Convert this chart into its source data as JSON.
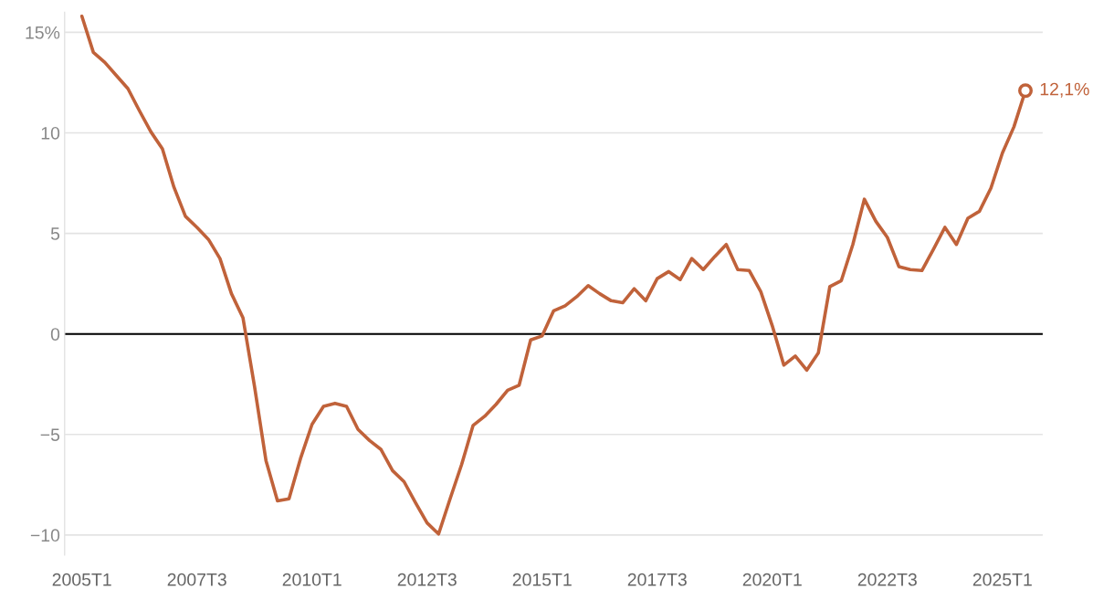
{
  "chart_data": {
    "type": "line",
    "categories": [
      "2005T1",
      null,
      null,
      null,
      null,
      null,
      null,
      null,
      null,
      null,
      "2007T3",
      null,
      null,
      null,
      null,
      null,
      null,
      null,
      null,
      null,
      "2010T1",
      null,
      null,
      null,
      null,
      null,
      null,
      null,
      null,
      null,
      "2012T3",
      null,
      null,
      null,
      null,
      null,
      null,
      null,
      null,
      null,
      "2015T1",
      null,
      null,
      null,
      null,
      null,
      null,
      null,
      null,
      null,
      "2017T3",
      null,
      null,
      null,
      null,
      null,
      null,
      null,
      null,
      null,
      "2020T1",
      null,
      null,
      null,
      null,
      null,
      null,
      null,
      null,
      null,
      "2022T3",
      null,
      null,
      null,
      null,
      null,
      null,
      null,
      null,
      null,
      "2025T1",
      null,
      null
    ],
    "series": [
      {
        "color": "#c0623a",
        "values": [
          15.8,
          14.0,
          13.5,
          12.85,
          12.2,
          11.1,
          10.05,
          9.2,
          7.3,
          5.85,
          5.3,
          4.7,
          3.75,
          2.0,
          0.8,
          -2.6,
          -6.3,
          -8.3,
          -8.2,
          -6.2,
          -4.5,
          -3.6,
          -3.45,
          -3.6,
          -4.75,
          -5.3,
          -5.75,
          -6.8,
          -7.35,
          -8.4,
          -9.4,
          -9.95,
          -8.2,
          -6.5,
          -4.55,
          -4.1,
          -3.5,
          -2.8,
          -2.55,
          -0.3,
          -0.1,
          1.15,
          1.4,
          1.85,
          2.4,
          2.0,
          1.65,
          1.55,
          2.25,
          1.65,
          2.75,
          3.1,
          2.7,
          3.75,
          3.2,
          3.85,
          4.45,
          3.2,
          3.15,
          2.1,
          0.4,
          -1.55,
          -1.1,
          -1.8,
          -0.95,
          2.35,
          2.65,
          4.45,
          6.7,
          5.6,
          4.8,
          3.35,
          3.2,
          3.15,
          4.2,
          5.3,
          4.45,
          5.75,
          6.1,
          7.25,
          9.0,
          10.3,
          12.1
        ],
        "value_labels": [
          null,
          null,
          null,
          null,
          null,
          null,
          null,
          null,
          null,
          null,
          null,
          null,
          null,
          null,
          null,
          null,
          null,
          null,
          null,
          null,
          null,
          null,
          null,
          null,
          null,
          null,
          null,
          null,
          null,
          null,
          null,
          null,
          null,
          null,
          null,
          null,
          null,
          null,
          null,
          null,
          null,
          null,
          null,
          null,
          null,
          null,
          null,
          null,
          null,
          null,
          null,
          null,
          null,
          null,
          null,
          null,
          null,
          null,
          null,
          null,
          null,
          null,
          null,
          null,
          null,
          null,
          null,
          null,
          null,
          null,
          null,
          null,
          null,
          null,
          null,
          null,
          null,
          null,
          null,
          null,
          null,
          null,
          "12,1%"
        ]
      }
    ],
    "ylim": [
      -11,
      16
    ],
    "yticks": [
      {
        "value": 15,
        "label": "15%"
      },
      10,
      5,
      0,
      {
        "value": -5,
        "label": "−5"
      },
      {
        "value": -10,
        "label": "−10"
      }
    ],
    "grid": "y",
    "ref_lines": [
      {
        "axis": "y",
        "value": 0,
        "color": "#000000"
      }
    ],
    "legend": false
  }
}
